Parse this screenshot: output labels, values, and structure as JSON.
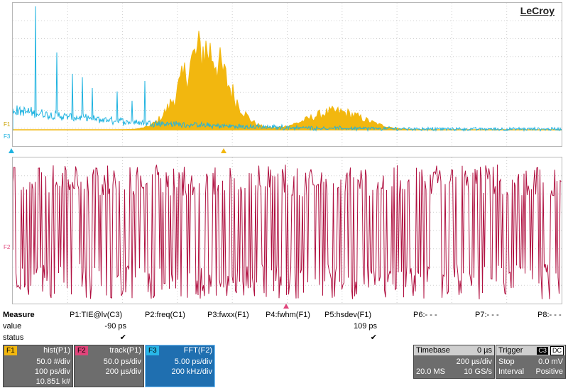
{
  "brand": "LeCroy",
  "trace_labels": {
    "f1": "F1",
    "f3": "F3",
    "f2": "F2"
  },
  "measure": {
    "row_labels": [
      "Measure",
      "value",
      "status"
    ],
    "params": [
      {
        "name": "P1:TIE@lv(C3)",
        "value": "-90 ps",
        "status": "✔"
      },
      {
        "name": "P2:freq(C1)",
        "value": "",
        "status": ""
      },
      {
        "name": "P3:fwxx(F1)",
        "value": "",
        "status": ""
      },
      {
        "name": "P4:fwhm(F1)",
        "value": "",
        "status": ""
      },
      {
        "name": "P5:hsdev(F1)",
        "value": "109 ps",
        "status": "✔"
      },
      {
        "name": "P6:- - -",
        "value": "",
        "status": ""
      },
      {
        "name": "P7:- - -",
        "value": "",
        "status": ""
      },
      {
        "name": "P8:- - -",
        "value": "",
        "status": ""
      }
    ]
  },
  "functions": [
    {
      "tag": "F1",
      "tag_color": "#f2b70f",
      "title": "hist(P1)",
      "lines": [
        "50.0 #/div",
        "100 ps/div",
        "10.851 k#"
      ]
    },
    {
      "tag": "F2",
      "tag_color": "#e0457b",
      "title": "track(P1)",
      "lines": [
        "50.0 ps/div",
        "200 µs/div",
        ""
      ]
    },
    {
      "tag": "F3",
      "tag_color": "#29b6e8",
      "title": "FFT(F2)",
      "lines": [
        "5.00 ps/div",
        "200 kHz/div",
        ""
      ]
    }
  ],
  "timebase": {
    "label": "Timebase",
    "delay": "0 µs",
    "per_div": "200 µs/div",
    "samples": "20.0 MS",
    "rate": "10 GS/s"
  },
  "trigger": {
    "label": "Trigger",
    "src": "C3",
    "coupling": "DC",
    "mode": "Stop",
    "level": "0.0 mV",
    "type": "Interval",
    "slope": "Positive"
  },
  "colors": {
    "f1": "#f2b70f",
    "f2": "#b01040",
    "f3": "#1fb3e0"
  }
}
